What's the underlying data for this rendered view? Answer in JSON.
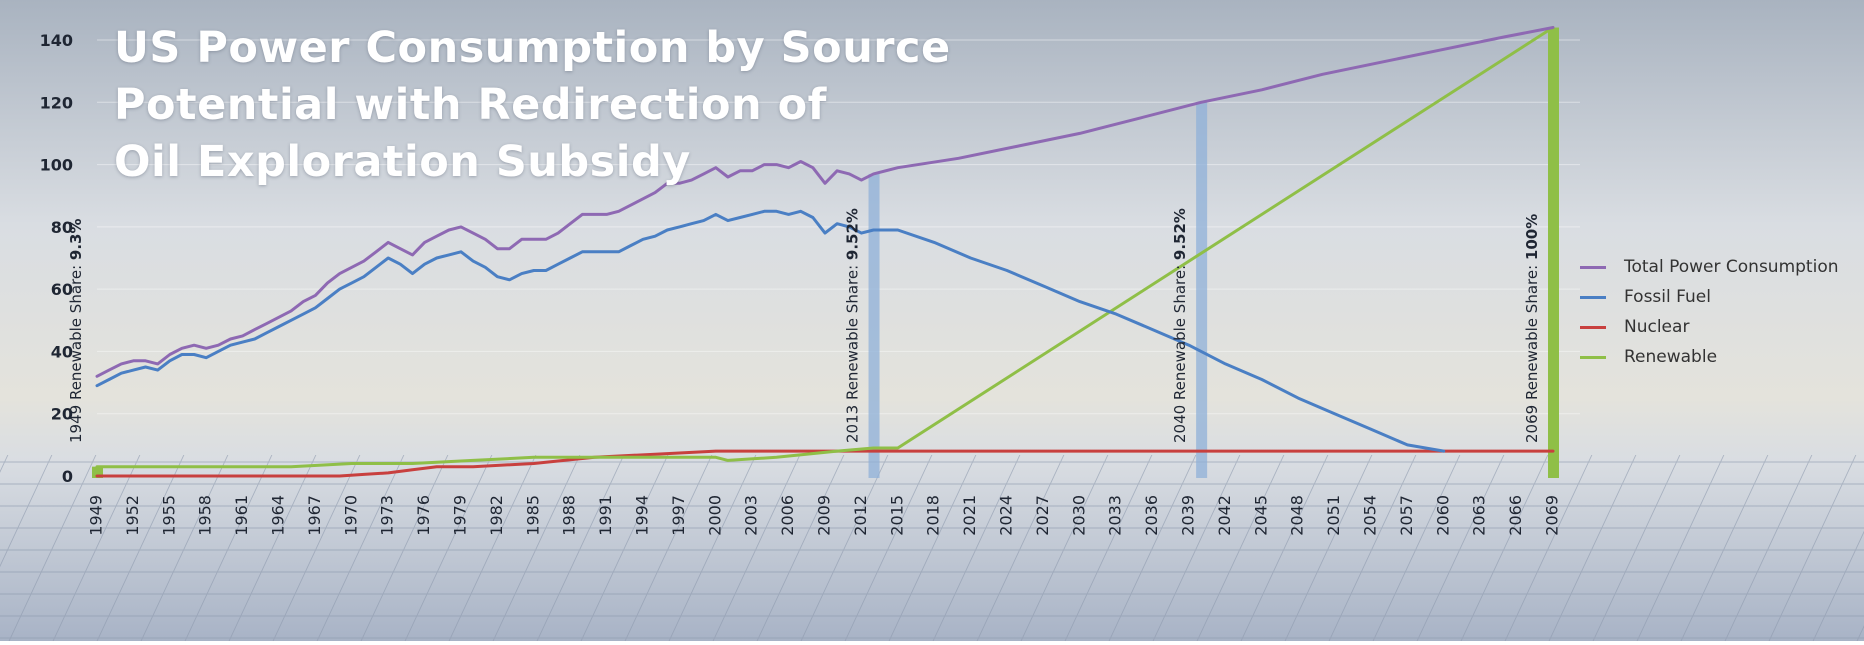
{
  "title_lines": [
    "US Power Consumption by Source",
    "Potential with Redirection of",
    "Oil Exploration Subsidy"
  ],
  "colors": {
    "total": "#8e69b3",
    "fossil": "#4a7fc4",
    "nuclear": "#c8403e",
    "renewable": "#8fbf47",
    "marker_blue": "#8fb0d8",
    "marker_green": "#8fbf47",
    "sky_top": "#a9b3c0",
    "sky_mid": "#d9dde2",
    "horizon": "#e4e3dc",
    "panels": "#a8b3c6"
  },
  "chart_data": {
    "type": "line",
    "title": "US Power Consumption by Source Potential with Redirection of Oil Exploration Subsidy",
    "xlabel": "",
    "ylabel": "",
    "ylim": [
      0,
      140
    ],
    "yticks": [
      0,
      20,
      40,
      60,
      80,
      100,
      120,
      140
    ],
    "xlim": [
      1949,
      2069
    ],
    "xticks": [
      1949,
      1952,
      1955,
      1958,
      1961,
      1964,
      1967,
      1970,
      1973,
      1976,
      1979,
      1982,
      1985,
      1988,
      1991,
      1994,
      1997,
      2000,
      2003,
      2006,
      2009,
      2012,
      2015,
      2018,
      2021,
      2024,
      2027,
      2030,
      2033,
      2036,
      2039,
      2042,
      2045,
      2048,
      2051,
      2054,
      2057,
      2060,
      2063,
      2066,
      2069
    ],
    "grid": true,
    "legend_position": "right",
    "series": [
      {
        "name": "Total Power Consumption",
        "color_key": "total",
        "points": [
          [
            1949,
            32
          ],
          [
            1950,
            34
          ],
          [
            1951,
            36
          ],
          [
            1952,
            37
          ],
          [
            1953,
            37
          ],
          [
            1954,
            36
          ],
          [
            1955,
            39
          ],
          [
            1956,
            41
          ],
          [
            1957,
            42
          ],
          [
            1958,
            41
          ],
          [
            1959,
            42
          ],
          [
            1960,
            44
          ],
          [
            1961,
            45
          ],
          [
            1962,
            47
          ],
          [
            1963,
            49
          ],
          [
            1964,
            51
          ],
          [
            1965,
            53
          ],
          [
            1966,
            56
          ],
          [
            1967,
            58
          ],
          [
            1968,
            62
          ],
          [
            1969,
            65
          ],
          [
            1970,
            67
          ],
          [
            1971,
            69
          ],
          [
            1972,
            72
          ],
          [
            1973,
            75
          ],
          [
            1974,
            73
          ],
          [
            1975,
            71
          ],
          [
            1976,
            75
          ],
          [
            1977,
            77
          ],
          [
            1978,
            79
          ],
          [
            1979,
            80
          ],
          [
            1980,
            78
          ],
          [
            1981,
            76
          ],
          [
            1982,
            73
          ],
          [
            1983,
            73
          ],
          [
            1984,
            76
          ],
          [
            1985,
            76
          ],
          [
            1986,
            76
          ],
          [
            1987,
            78
          ],
          [
            1988,
            81
          ],
          [
            1989,
            84
          ],
          [
            1990,
            84
          ],
          [
            1991,
            84
          ],
          [
            1992,
            85
          ],
          [
            1993,
            87
          ],
          [
            1994,
            89
          ],
          [
            1995,
            91
          ],
          [
            1996,
            94
          ],
          [
            1997,
            94
          ],
          [
            1998,
            95
          ],
          [
            1999,
            97
          ],
          [
            2000,
            99
          ],
          [
            2001,
            96
          ],
          [
            2002,
            98
          ],
          [
            2003,
            98
          ],
          [
            2004,
            100
          ],
          [
            2005,
            100
          ],
          [
            2006,
            99
          ],
          [
            2007,
            101
          ],
          [
            2008,
            99
          ],
          [
            2009,
            94
          ],
          [
            2010,
            98
          ],
          [
            2011,
            97
          ],
          [
            2012,
            95
          ],
          [
            2013,
            97
          ],
          [
            2015,
            99
          ],
          [
            2020,
            102
          ],
          [
            2025,
            106
          ],
          [
            2030,
            110
          ],
          [
            2035,
            115
          ],
          [
            2040,
            120
          ],
          [
            2045,
            124
          ],
          [
            2050,
            129
          ],
          [
            2055,
            133
          ],
          [
            2060,
            137
          ],
          [
            2065,
            141
          ],
          [
            2069,
            144
          ]
        ]
      },
      {
        "name": "Fossil Fuel",
        "color_key": "fossil",
        "points": [
          [
            1949,
            29
          ],
          [
            1950,
            31
          ],
          [
            1951,
            33
          ],
          [
            1952,
            34
          ],
          [
            1953,
            35
          ],
          [
            1954,
            34
          ],
          [
            1955,
            37
          ],
          [
            1956,
            39
          ],
          [
            1957,
            39
          ],
          [
            1958,
            38
          ],
          [
            1959,
            40
          ],
          [
            1960,
            42
          ],
          [
            1961,
            43
          ],
          [
            1962,
            44
          ],
          [
            1963,
            46
          ],
          [
            1964,
            48
          ],
          [
            1965,
            50
          ],
          [
            1966,
            52
          ],
          [
            1967,
            54
          ],
          [
            1968,
            57
          ],
          [
            1969,
            60
          ],
          [
            1970,
            62
          ],
          [
            1971,
            64
          ],
          [
            1972,
            67
          ],
          [
            1973,
            70
          ],
          [
            1974,
            68
          ],
          [
            1975,
            65
          ],
          [
            1976,
            68
          ],
          [
            1977,
            70
          ],
          [
            1978,
            71
          ],
          [
            1979,
            72
          ],
          [
            1980,
            69
          ],
          [
            1981,
            67
          ],
          [
            1982,
            64
          ],
          [
            1983,
            63
          ],
          [
            1984,
            65
          ],
          [
            1985,
            66
          ],
          [
            1986,
            66
          ],
          [
            1987,
            68
          ],
          [
            1988,
            70
          ],
          [
            1989,
            72
          ],
          [
            1990,
            72
          ],
          [
            1991,
            72
          ],
          [
            1992,
            72
          ],
          [
            1993,
            74
          ],
          [
            1994,
            76
          ],
          [
            1995,
            77
          ],
          [
            1996,
            79
          ],
          [
            1997,
            80
          ],
          [
            1998,
            81
          ],
          [
            1999,
            82
          ],
          [
            2000,
            84
          ],
          [
            2001,
            82
          ],
          [
            2002,
            83
          ],
          [
            2003,
            84
          ],
          [
            2004,
            85
          ],
          [
            2005,
            85
          ],
          [
            2006,
            84
          ],
          [
            2007,
            85
          ],
          [
            2008,
            83
          ],
          [
            2009,
            78
          ],
          [
            2010,
            81
          ],
          [
            2011,
            80
          ],
          [
            2012,
            78
          ],
          [
            2013,
            79
          ],
          [
            2015,
            79
          ],
          [
            2018,
            75
          ],
          [
            2021,
            70
          ],
          [
            2024,
            66
          ],
          [
            2027,
            61
          ],
          [
            2030,
            56
          ],
          [
            2033,
            52
          ],
          [
            2036,
            47
          ],
          [
            2039,
            42
          ],
          [
            2042,
            36
          ],
          [
            2045,
            31
          ],
          [
            2048,
            25
          ],
          [
            2051,
            20
          ],
          [
            2054,
            15
          ],
          [
            2057,
            10
          ],
          [
            2060,
            8
          ]
        ]
      },
      {
        "name": "Nuclear",
        "color_key": "nuclear",
        "points": [
          [
            1949,
            0
          ],
          [
            1955,
            0
          ],
          [
            1960,
            0
          ],
          [
            1965,
            0
          ],
          [
            1969,
            0
          ],
          [
            1971,
            0.5
          ],
          [
            1973,
            1
          ],
          [
            1975,
            2
          ],
          [
            1977,
            3
          ],
          [
            1980,
            3
          ],
          [
            1985,
            4
          ],
          [
            1990,
            6
          ],
          [
            1995,
            7
          ],
          [
            2000,
            8
          ],
          [
            2005,
            8
          ],
          [
            2010,
            8
          ],
          [
            2015,
            8
          ],
          [
            2069,
            8
          ]
        ]
      },
      {
        "name": "Renewable",
        "color_key": "renewable",
        "points": [
          [
            1949,
            3
          ],
          [
            1955,
            3
          ],
          [
            1960,
            3
          ],
          [
            1965,
            3
          ],
          [
            1970,
            4
          ],
          [
            1975,
            4
          ],
          [
            1980,
            5
          ],
          [
            1985,
            6
          ],
          [
            1990,
            6
          ],
          [
            1995,
            6
          ],
          [
            2000,
            6
          ],
          [
            2001,
            5
          ],
          [
            2005,
            6
          ],
          [
            2010,
            8
          ],
          [
            2013,
            9
          ],
          [
            2015,
            9
          ],
          [
            2069,
            144
          ]
        ]
      }
    ],
    "annotations": [
      {
        "year": 1949,
        "label": "1949 Renewable Share:",
        "value": "9.3%",
        "color_key": "renewable",
        "bar_value": 3
      },
      {
        "year": 2013,
        "label": "2013 Renewable Share:",
        "value": "9.52%",
        "color_key": "marker_blue",
        "bar_value": 97
      },
      {
        "year": 2040,
        "label": "2040 Renewable Share:",
        "value": "9.52%",
        "color_key": "marker_blue",
        "bar_value": 120
      },
      {
        "year": 2069,
        "label": "2069 Renewable Share:",
        "value": "100%",
        "color_key": "renewable",
        "bar_value": 144
      }
    ]
  }
}
